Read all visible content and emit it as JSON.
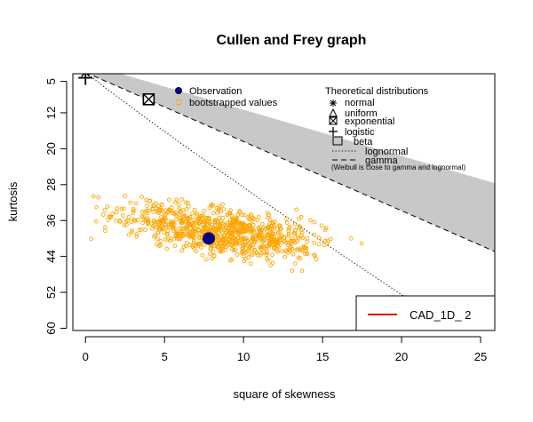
{
  "chart_data": {
    "type": "scatter",
    "title": "Cullen and Frey graph",
    "xlabel": "square of skewness",
    "ylabel": "kurtosis",
    "xlim": [
      -0.8,
      25.9
    ],
    "ylim": [
      60.5,
      3.3
    ],
    "y_reversed": true,
    "x_ticks": [
      0,
      5,
      10,
      15,
      20,
      25
    ],
    "y_ticks": [
      5,
      12,
      20,
      28,
      36,
      44,
      52,
      60
    ],
    "observation": {
      "x": 7.8,
      "y": 40.0
    },
    "bootstrap_seed": 12345,
    "bootstrap_count": 900,
    "bootstrap_center": {
      "x": 8.5,
      "y": 38.5
    },
    "theoretical": {
      "normal": {
        "x": 0,
        "y": 3
      },
      "uniform": {
        "x": 0,
        "y": 1.8
      },
      "exponential": {
        "x": 4,
        "y": 9
      },
      "logistic": {
        "x": 0,
        "y": 4.2
      }
    },
    "beta_region_upper": [
      [
        0,
        1
      ],
      [
        25.9,
        27.7
      ]
    ],
    "beta_region_lower": [
      [
        0,
        3
      ],
      [
        25.9,
        42.9
      ]
    ],
    "lognormal_curve": [
      [
        0,
        3
      ],
      [
        2,
        8.4
      ],
      [
        4,
        13.6
      ],
      [
        6,
        18.7
      ],
      [
        8,
        23.7
      ],
      [
        10,
        28.6
      ],
      [
        12,
        33.5
      ],
      [
        14,
        38.3
      ],
      [
        16,
        43.1
      ],
      [
        18,
        47.8
      ],
      [
        20,
        52.5
      ],
      [
        22,
        57.2
      ],
      [
        23.5,
        60.5
      ]
    ],
    "legend": {
      "observation": "Observation",
      "bootstrap": "bootstrapped values",
      "theo_title": "Theoretical distributions",
      "normal": "normal",
      "uniform": "uniform",
      "exponential": "exponential",
      "logistic": "logistic",
      "beta": "beta",
      "lognormal": "lognormal",
      "gamma": "gamma",
      "note": "(Weibull is close to gamma and lognormal)",
      "series_box": "CAD_1D_ 2"
    },
    "colors": {
      "observation": "#00007f",
      "bootstrap": "#ffa500",
      "beta_fill": "#c8c8c8",
      "series_line": "#e00000"
    }
  }
}
